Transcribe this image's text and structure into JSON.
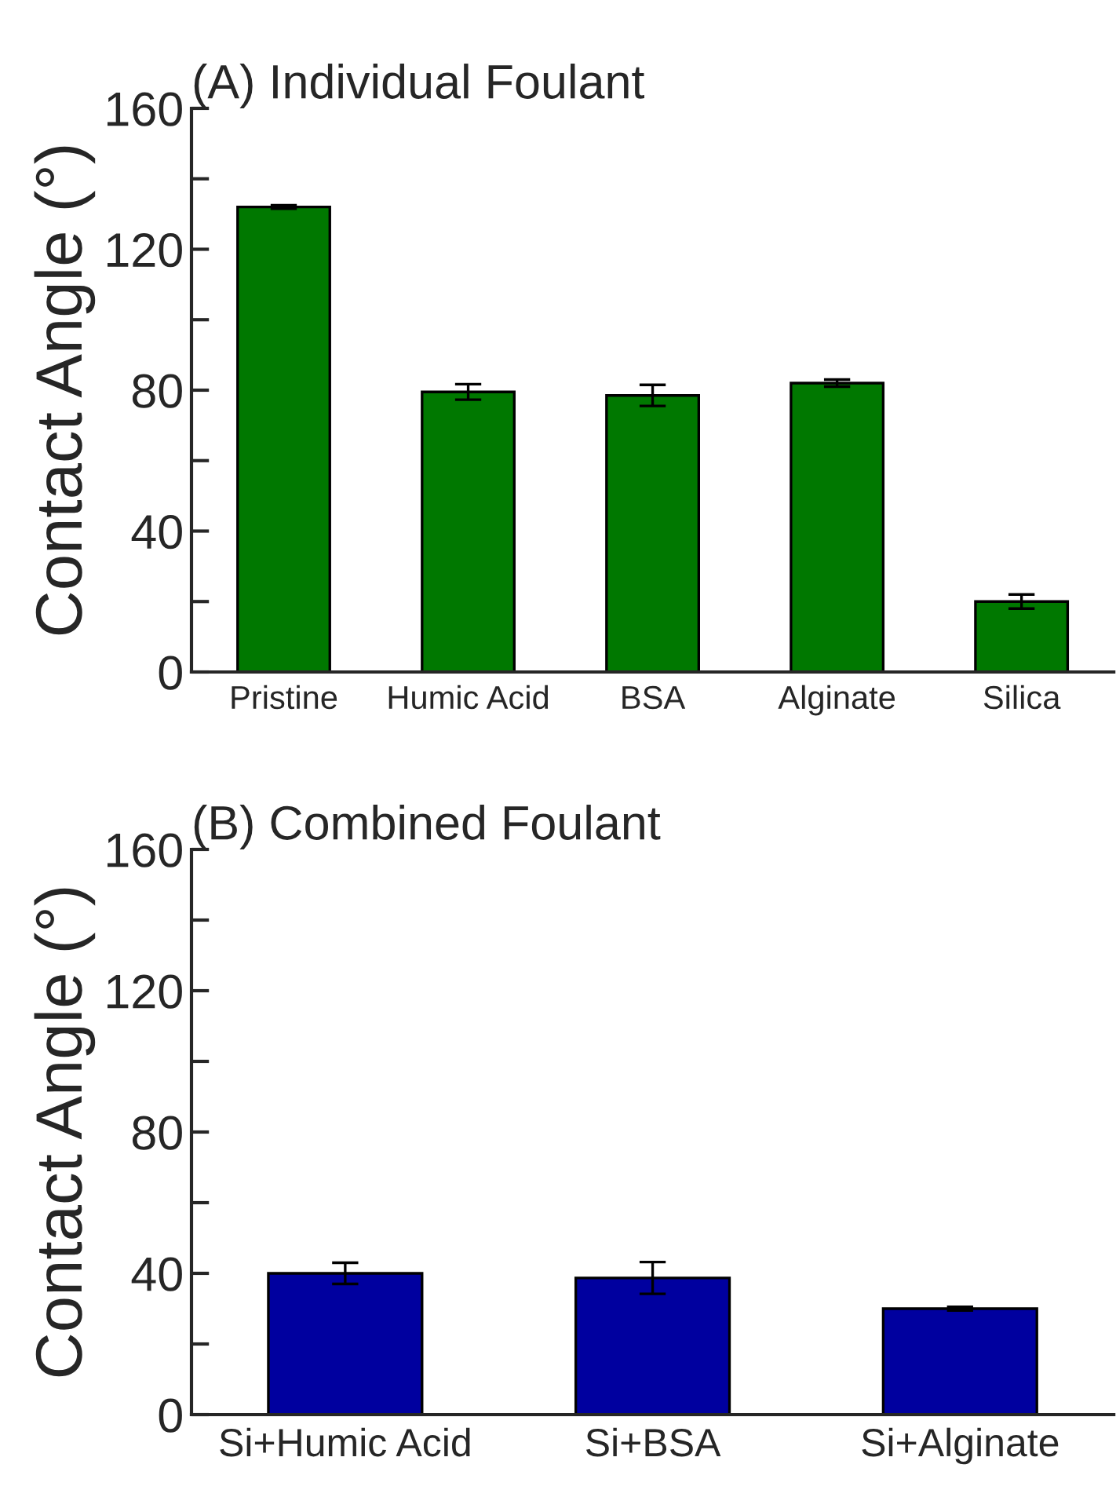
{
  "chart_data": [
    {
      "type": "bar",
      "title": "(A) Individual Foulant",
      "ylabel": "Contact Angle (°)",
      "categories": [
        "Pristine",
        "Humic Acid",
        "BSA",
        "Alginate",
        "Silica"
      ],
      "values": [
        132,
        79.5,
        78.5,
        82,
        20
      ],
      "errors": [
        0.5,
        2.2,
        3,
        1,
        2
      ],
      "color": "#007800",
      "ylim": [
        0,
        160
      ],
      "yticks": [
        0,
        {
          "value": 20,
          "label": null
        },
        40,
        {
          "value": 60,
          "label": null
        },
        80,
        {
          "value": 100,
          "label": null
        },
        120,
        {
          "value": 140,
          "label": null
        },
        160
      ],
      "grid": false
    },
    {
      "type": "bar",
      "title": "(B) Combined Foulant",
      "ylabel": "Contact Angle (°)",
      "categories": [
        "Si+Humic Acid",
        "Si+BSA",
        "Si+Alginate"
      ],
      "values": [
        40,
        38.7,
        30
      ],
      "errors": [
        3,
        4.5,
        0.5
      ],
      "color": "#00009f",
      "ylim": [
        0,
        160
      ],
      "yticks": [
        0,
        {
          "value": 20,
          "label": null
        },
        40,
        {
          "value": 60,
          "label": null
        },
        80,
        {
          "value": 100,
          "label": null
        },
        120,
        {
          "value": 140,
          "label": null
        },
        160
      ],
      "grid": false
    }
  ]
}
